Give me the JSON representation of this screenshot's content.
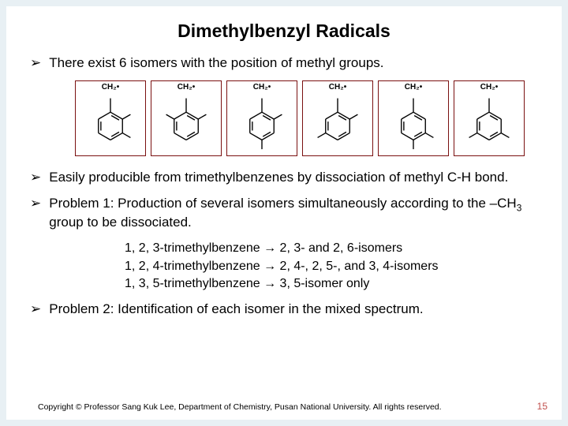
{
  "title": "Dimethylbenzyl Radicals",
  "bullets": {
    "b1": "There exist 6 isomers with the position of methyl groups.",
    "b2": "Easily producible from trimethylbenzenes by dissociation of methyl C-H bond.",
    "b3_lead": "Problem 1: Production of several isomers simultaneously according to the –CH",
    "b3_tail": " group to be dissociated.",
    "b4": "Problem 2: Identification of each isomer in the mixed spectrum."
  },
  "sublist": {
    "s1": "1, 2, 3-trimethylbenzene → 2, 3- and 2, 6-isomers",
    "s2": "1, 2, 4-trimethylbenzene → 2, 4-, 2, 5-, and 3, 4-isomers",
    "s3": "1, 3, 5-trimethylbenzene → 3, 5-isomer only"
  },
  "ch2_label": "CH₂•",
  "copyright": "Copyright © Professor Sang Kuk Lee, Department of Chemistry, Pusan National University. All rights reserved.",
  "page_number": "15",
  "colors": {
    "slide_bg": "#ffffff",
    "outer_bg": "#e8f0f4",
    "box_border": "#7a1010",
    "pagenum": "#c0504d",
    "molecule_stroke": "#000000"
  },
  "isomers": [
    {
      "name": "2,3-dimethyl",
      "methyl_positions": [
        2,
        3
      ]
    },
    {
      "name": "2,6-dimethyl",
      "methyl_positions": [
        2,
        6
      ]
    },
    {
      "name": "2,4-dimethyl",
      "methyl_positions": [
        2,
        4
      ]
    },
    {
      "name": "2,5-dimethyl",
      "methyl_positions": [
        2,
        5
      ]
    },
    {
      "name": "3,4-dimethyl",
      "methyl_positions": [
        3,
        4
      ]
    },
    {
      "name": "3,5-dimethyl",
      "methyl_positions": [
        3,
        5
      ]
    }
  ],
  "molecule_style": {
    "stroke_width": 1.4,
    "ring_radius": 18,
    "substituent_len": 12
  }
}
